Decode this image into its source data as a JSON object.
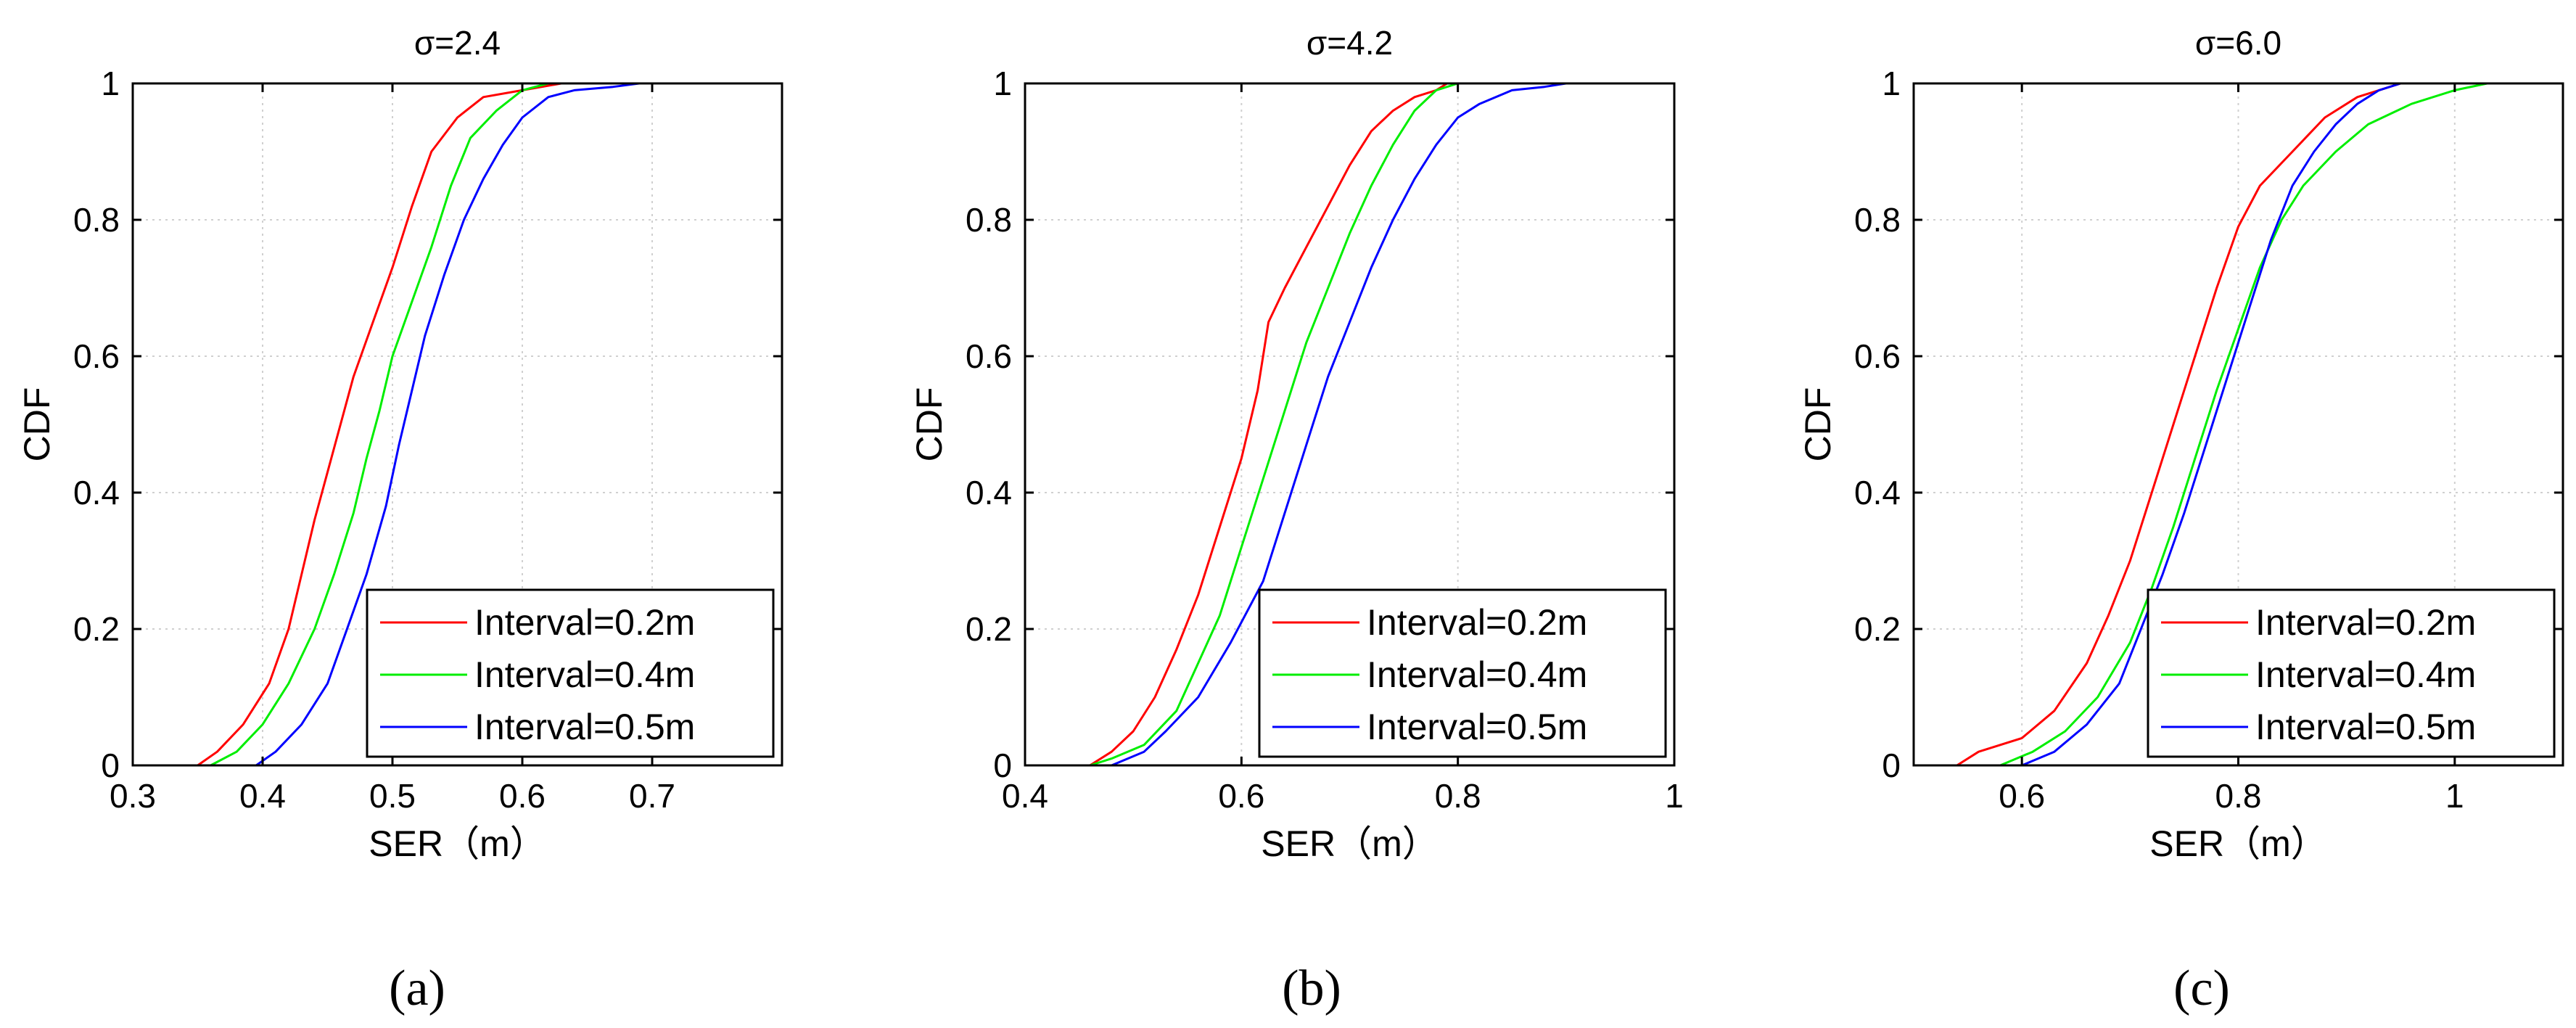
{
  "figure": {
    "subcaptions": [
      "(a)",
      "(b)",
      "(c)"
    ]
  },
  "chart_data": [
    {
      "type": "line",
      "title": "σ=2.4",
      "xlabel": "SER（m）",
      "ylabel": "CDF",
      "xlim": [
        0.3,
        0.8
      ],
      "ylim": [
        0,
        1
      ],
      "xticks": [
        0.3,
        0.4,
        0.5,
        0.6,
        0.7
      ],
      "xtick_labels": [
        "0.3",
        "0.4",
        "0.5",
        "0.6",
        "0.7"
      ],
      "yticks": [
        0,
        0.2,
        0.4,
        0.6,
        0.8,
        1
      ],
      "ytick_labels": [
        "0",
        "0.2",
        "0.4",
        "0.6",
        "0.8",
        "1"
      ],
      "grid": true,
      "legend_position": "bottom-right",
      "series": [
        {
          "name": "Interval=0.2m",
          "color": "#ff0000",
          "x": [
            0.35,
            0.365,
            0.385,
            0.405,
            0.42,
            0.43,
            0.44,
            0.45,
            0.46,
            0.47,
            0.485,
            0.5,
            0.515,
            0.53,
            0.55,
            0.57,
            0.6,
            0.63,
            0.65
          ],
          "y": [
            0,
            0.02,
            0.06,
            0.12,
            0.2,
            0.28,
            0.36,
            0.43,
            0.5,
            0.57,
            0.65,
            0.73,
            0.82,
            0.9,
            0.95,
            0.98,
            0.99,
            1.0,
            1.0
          ]
        },
        {
          "name": "Interval=0.4m",
          "color": "#00ee00",
          "x": [
            0.36,
            0.38,
            0.4,
            0.42,
            0.44,
            0.455,
            0.47,
            0.48,
            0.49,
            0.5,
            0.515,
            0.53,
            0.545,
            0.56,
            0.58,
            0.6,
            0.62,
            0.64
          ],
          "y": [
            0,
            0.02,
            0.06,
            0.12,
            0.2,
            0.28,
            0.37,
            0.45,
            0.52,
            0.6,
            0.68,
            0.76,
            0.85,
            0.92,
            0.96,
            0.99,
            1.0,
            1.0
          ]
        },
        {
          "name": "Interval=0.5m",
          "color": "#0000ff",
          "x": [
            0.395,
            0.41,
            0.43,
            0.45,
            0.465,
            0.48,
            0.495,
            0.505,
            0.515,
            0.525,
            0.54,
            0.555,
            0.57,
            0.585,
            0.6,
            0.62,
            0.64,
            0.67,
            0.69
          ],
          "y": [
            0,
            0.02,
            0.06,
            0.12,
            0.2,
            0.28,
            0.38,
            0.47,
            0.55,
            0.63,
            0.72,
            0.8,
            0.86,
            0.91,
            0.95,
            0.98,
            0.99,
            0.995,
            1.0
          ]
        }
      ]
    },
    {
      "type": "line",
      "title": "σ=4.2",
      "xlabel": "SER（m）",
      "ylabel": "CDF",
      "xlim": [
        0.4,
        1.0
      ],
      "ylim": [
        0,
        1
      ],
      "xticks": [
        0.4,
        0.6,
        0.8,
        1.0
      ],
      "xtick_labels": [
        "0.4",
        "0.6",
        "0.8",
        "1"
      ],
      "yticks": [
        0,
        0.2,
        0.4,
        0.6,
        0.8,
        1
      ],
      "ytick_labels": [
        "0",
        "0.2",
        "0.4",
        "0.6",
        "0.8",
        "1"
      ],
      "grid": true,
      "legend_position": "bottom-right",
      "series": [
        {
          "name": "Interval=0.2m",
          "color": "#ff0000",
          "x": [
            0.46,
            0.48,
            0.5,
            0.52,
            0.54,
            0.56,
            0.58,
            0.6,
            0.615,
            0.625,
            0.64,
            0.66,
            0.68,
            0.7,
            0.72,
            0.74,
            0.76,
            0.78,
            0.79
          ],
          "y": [
            0,
            0.02,
            0.05,
            0.1,
            0.17,
            0.25,
            0.35,
            0.45,
            0.55,
            0.65,
            0.7,
            0.76,
            0.82,
            0.88,
            0.93,
            0.96,
            0.98,
            0.99,
            1.0
          ]
        },
        {
          "name": "Interval=0.4m",
          "color": "#00ee00",
          "x": [
            0.46,
            0.48,
            0.51,
            0.54,
            0.56,
            0.58,
            0.6,
            0.62,
            0.64,
            0.66,
            0.68,
            0.7,
            0.72,
            0.74,
            0.76,
            0.78,
            0.8
          ],
          "y": [
            0,
            0.01,
            0.03,
            0.08,
            0.15,
            0.22,
            0.32,
            0.42,
            0.52,
            0.62,
            0.7,
            0.78,
            0.85,
            0.91,
            0.96,
            0.99,
            1.0
          ]
        },
        {
          "name": "Interval=0.5m",
          "color": "#0000ff",
          "x": [
            0.48,
            0.51,
            0.53,
            0.56,
            0.59,
            0.62,
            0.64,
            0.66,
            0.68,
            0.7,
            0.72,
            0.74,
            0.76,
            0.78,
            0.8,
            0.82,
            0.85,
            0.88,
            0.9
          ],
          "y": [
            0,
            0.02,
            0.05,
            0.1,
            0.18,
            0.27,
            0.37,
            0.47,
            0.57,
            0.65,
            0.73,
            0.8,
            0.86,
            0.91,
            0.95,
            0.97,
            0.99,
            0.995,
            1.0
          ]
        }
      ]
    },
    {
      "type": "line",
      "title": "σ=6.0",
      "xlabel": "SER（m）",
      "ylabel": "CDF",
      "xlim": [
        0.5,
        1.1
      ],
      "ylim": [
        0,
        1
      ],
      "xticks": [
        0.6,
        0.8,
        1.0
      ],
      "xtick_labels": [
        "0.6",
        "0.8",
        "1"
      ],
      "yticks": [
        0,
        0.2,
        0.4,
        0.6,
        0.8,
        1
      ],
      "ytick_labels": [
        "0",
        "0.2",
        "0.4",
        "0.6",
        "0.8",
        "1"
      ],
      "grid": true,
      "legend_position": "bottom-right",
      "series": [
        {
          "name": "Interval=0.2m",
          "color": "#ff0000",
          "x": [
            0.54,
            0.56,
            0.6,
            0.63,
            0.66,
            0.68,
            0.7,
            0.72,
            0.74,
            0.76,
            0.78,
            0.8,
            0.82,
            0.85,
            0.88,
            0.91,
            0.93,
            0.95
          ],
          "y": [
            0,
            0.02,
            0.04,
            0.08,
            0.15,
            0.22,
            0.3,
            0.4,
            0.5,
            0.6,
            0.7,
            0.79,
            0.85,
            0.9,
            0.95,
            0.98,
            0.99,
            1.0
          ]
        },
        {
          "name": "Interval=0.4m",
          "color": "#00ee00",
          "x": [
            0.58,
            0.61,
            0.64,
            0.67,
            0.7,
            0.72,
            0.74,
            0.76,
            0.78,
            0.8,
            0.82,
            0.84,
            0.86,
            0.89,
            0.92,
            0.96,
            1.0,
            1.03
          ],
          "y": [
            0,
            0.02,
            0.05,
            0.1,
            0.18,
            0.26,
            0.35,
            0.45,
            0.55,
            0.64,
            0.73,
            0.8,
            0.85,
            0.9,
            0.94,
            0.97,
            0.99,
            1.0
          ]
        },
        {
          "name": "Interval=0.5m",
          "color": "#0000ff",
          "x": [
            0.6,
            0.63,
            0.66,
            0.69,
            0.71,
            0.73,
            0.75,
            0.77,
            0.79,
            0.81,
            0.83,
            0.85,
            0.87,
            0.89,
            0.91,
            0.93,
            0.95
          ],
          "y": [
            0,
            0.02,
            0.06,
            0.12,
            0.2,
            0.28,
            0.37,
            0.47,
            0.57,
            0.67,
            0.77,
            0.85,
            0.9,
            0.94,
            0.97,
            0.99,
            1.0
          ]
        }
      ]
    }
  ]
}
